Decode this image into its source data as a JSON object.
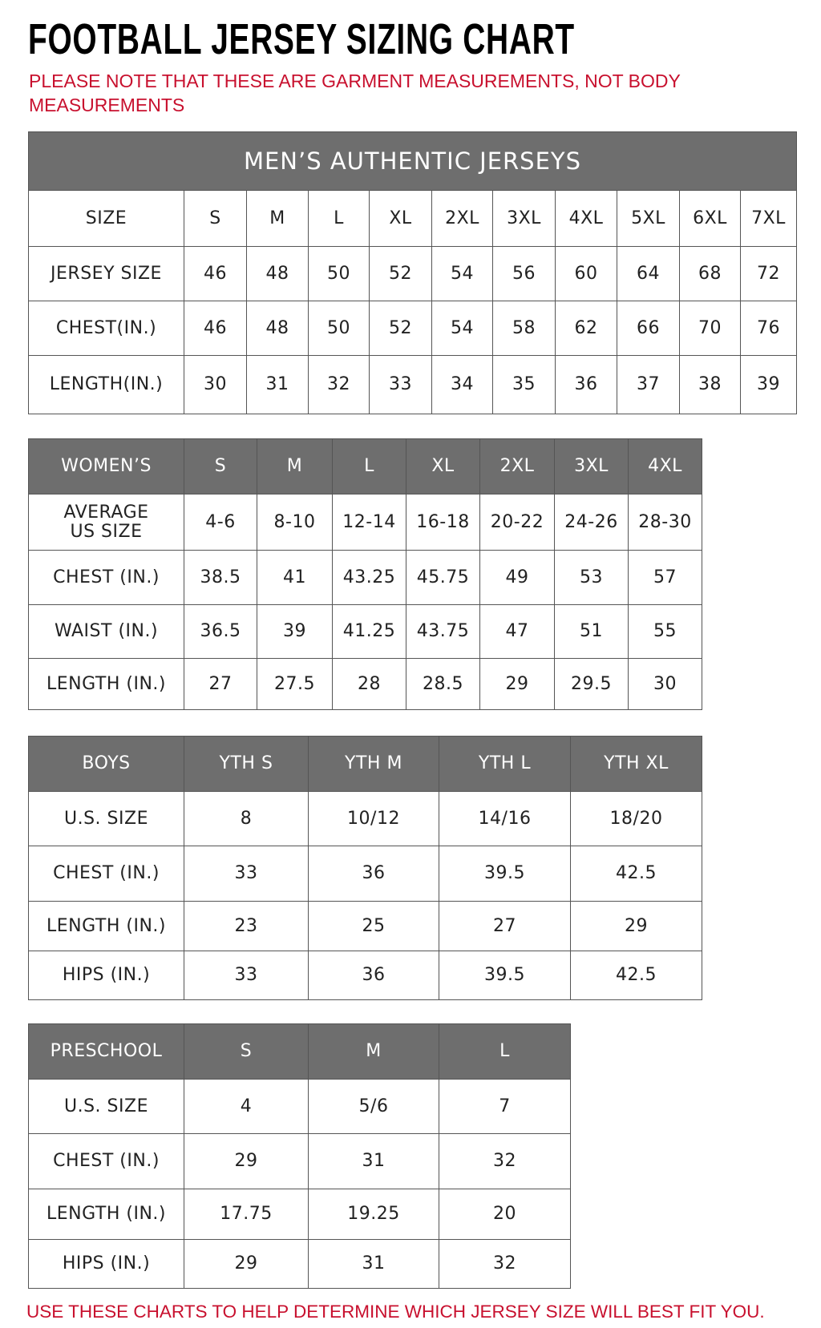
{
  "header": {
    "title": "FOOTBALL JERSEY SIZING CHART",
    "note": "PLEASE NOTE THAT THESE ARE GARMENT MEASUREMENTS, NOT BODY MEASUREMENTS"
  },
  "tables": [
    {
      "title": "MEN’S AUTHENTIC JERSEYS",
      "header": [
        "SIZE",
        "S",
        "M",
        "L",
        "XL",
        "2XL",
        "3XL",
        "4XL",
        "5XL",
        "6XL",
        "7XL"
      ],
      "rows": [
        [
          "JERSEY SIZE",
          "46",
          "48",
          "50",
          "52",
          "54",
          "56",
          "60",
          "64",
          "68",
          "72"
        ],
        [
          "CHEST(IN.)",
          "46",
          "48",
          "50",
          "52",
          "54",
          "58",
          "62",
          "66",
          "70",
          "76"
        ],
        [
          "LENGTH(IN.)",
          "30",
          "31",
          "32",
          "33",
          "34",
          "35",
          "36",
          "37",
          "38",
          "39"
        ]
      ]
    },
    {
      "header": [
        "WOMEN’S",
        "S",
        "M",
        "L",
        "XL",
        "2XL",
        "3XL",
        "4XL"
      ],
      "rows": [
        [
          "AVERAGE\nUS SIZE",
          "4-6",
          "8-10",
          "12-14",
          "16-18",
          "20-22",
          "24-26",
          "28-30"
        ],
        [
          "CHEST (IN.)",
          "38.5",
          "41",
          "43.25",
          "45.75",
          "49",
          "53",
          "57"
        ],
        [
          "WAIST (IN.)",
          "36.5",
          "39",
          "41.25",
          "43.75",
          "47",
          "51",
          "55"
        ],
        [
          "LENGTH (IN.)",
          "27",
          "27.5",
          "28",
          "28.5",
          "29",
          "29.5",
          "30"
        ]
      ]
    },
    {
      "header": [
        "BOYS",
        "YTH S",
        "YTH M",
        "YTH L",
        "YTH XL"
      ],
      "rows": [
        [
          "U.S. SIZE",
          "8",
          "10/12",
          "14/16",
          "18/20"
        ],
        [
          "CHEST (IN.)",
          "33",
          "36",
          "39.5",
          "42.5"
        ],
        [
          "LENGTH (IN.)",
          "23",
          "25",
          "27",
          "29"
        ],
        [
          "HIPS (IN.)",
          "33",
          "36",
          "39.5",
          "42.5"
        ]
      ]
    },
    {
      "header": [
        "PRESCHOOL",
        "S",
        "M",
        "L"
      ],
      "rows": [
        [
          "U.S. SIZE",
          "4",
          "5/6",
          "7"
        ],
        [
          "CHEST (IN.)",
          "29",
          "31",
          "32"
        ],
        [
          "LENGTH (IN.)",
          "17.75",
          "19.25",
          "20"
        ],
        [
          "HIPS (IN.)",
          "29",
          "31",
          "32"
        ]
      ]
    }
  ],
  "footer": "USE THESE CHARTS TO HELP DETERMINE WHICH JERSEY SIZE WILL BEST FIT YOU."
}
